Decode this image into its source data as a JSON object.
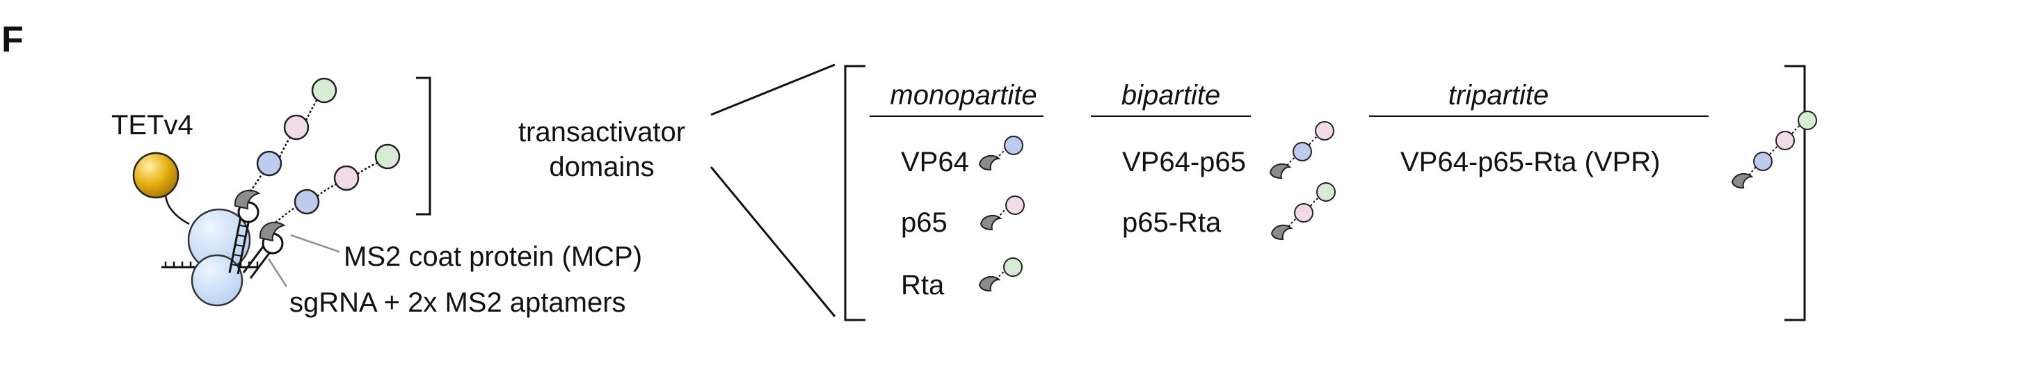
{
  "panel_label": "F",
  "complex": {
    "enzyme_label": "TETv4",
    "mcp_label": "MS2 coat protein (MCP)",
    "sgrna_label": "sgRNA + 2x MS2 aptamers"
  },
  "center": {
    "line1": "transactivator",
    "line2": "domains"
  },
  "columns": [
    {
      "header": "monopartite",
      "items": [
        "VP64",
        "p65",
        "Rta"
      ]
    },
    {
      "header": "bipartite",
      "items": [
        "VP64-p65",
        "p65-Rta"
      ]
    },
    {
      "header": "tripartite",
      "items": [
        "VP64-p65-Rta (VPR)"
      ]
    }
  ],
  "colors": {
    "vp64": "#bccbee",
    "p65": "#f1dbe7",
    "rta": "#d6ecd3",
    "mcp": "#8c8c8c",
    "dcas9": "#c5dcf5",
    "tet": "#e8b418"
  }
}
